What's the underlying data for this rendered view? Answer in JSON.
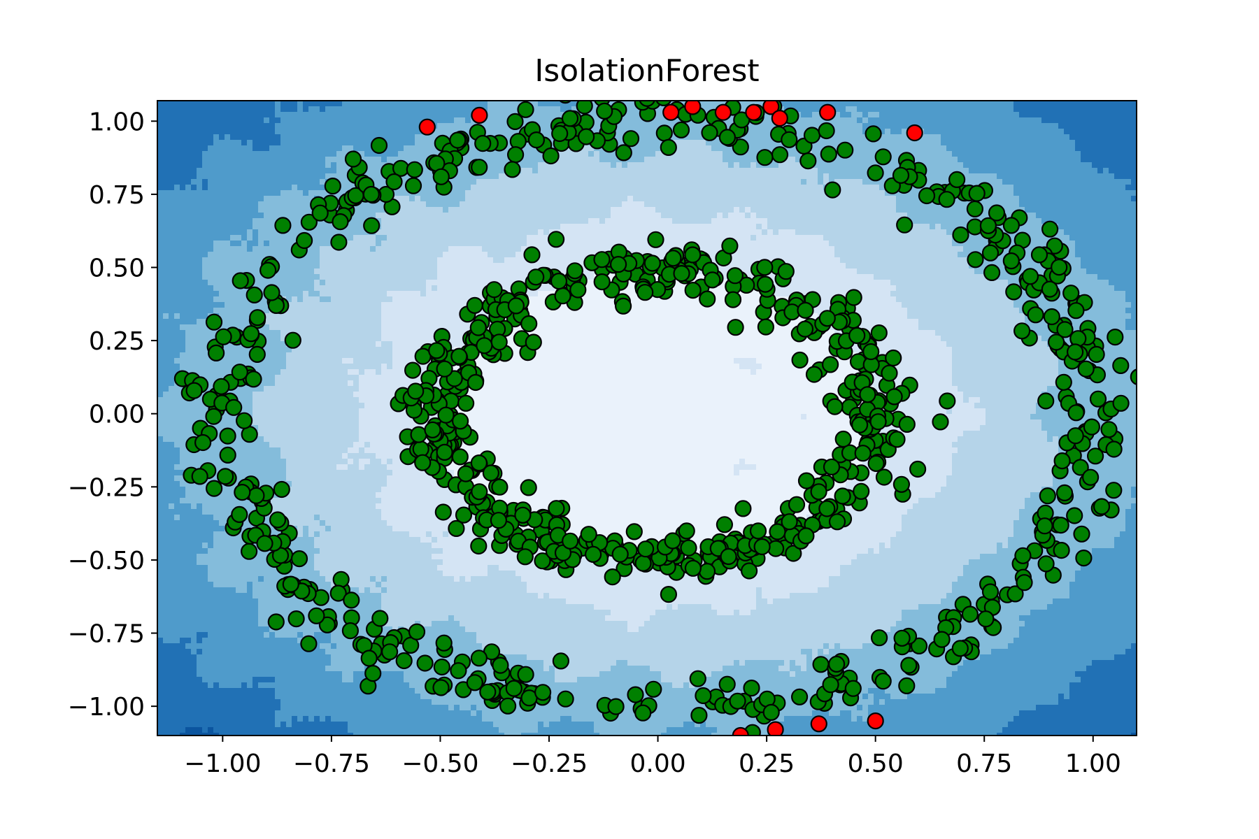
{
  "chart_data": {
    "type": "scatter",
    "title": "IsolationForest",
    "xlabel": "",
    "ylabel": "",
    "xlim": [
      -1.15,
      1.1
    ],
    "ylim": [
      -1.1,
      1.07
    ],
    "x_ticks": [
      -1.0,
      -0.75,
      -0.5,
      -0.25,
      0.0,
      0.25,
      0.5,
      0.75,
      1.0
    ],
    "x_tick_labels": [
      "−1.00",
      "−0.75",
      "−0.50",
      "−0.25",
      "0.00",
      "0.25",
      "0.50",
      "0.75",
      "1.00"
    ],
    "y_ticks": [
      1.0,
      0.75,
      0.5,
      0.25,
      0.0,
      -0.25,
      -0.5,
      -0.75,
      -1.0
    ],
    "y_tick_labels": [
      "1.00",
      "0.75",
      "0.50",
      "0.25",
      "0.00",
      "−0.25",
      "−0.50",
      "−0.75",
      "−1.00"
    ],
    "grid": false,
    "background": {
      "type": "filled-contour",
      "colormap": "Blues",
      "levels": [
        "#eaf2fb",
        "#d4e4f4",
        "#b5d4e9",
        "#84bcdb",
        "#4f9bcb",
        "#2171b5",
        "#0b559f",
        "#083c7d"
      ]
    },
    "marker_edge_color": "#000000",
    "series": [
      {
        "role": "inliers",
        "color": "#008000",
        "rings": [
          {
            "cx": 0.0,
            "cy": 0.0,
            "rx": 1.0,
            "ry": 1.0,
            "noise": 0.05,
            "count": 520
          },
          {
            "cx": 0.0,
            "cy": 0.0,
            "rx": 0.5,
            "ry": 0.5,
            "noise": 0.05,
            "count": 520
          }
        ]
      },
      {
        "role": "outliers",
        "color": "#ff0000",
        "x": [
          -0.53,
          -0.41,
          0.03,
          0.08,
          0.15,
          0.22,
          0.26,
          0.28,
          0.39,
          0.59,
          0.19,
          0.27,
          0.37,
          0.5
        ],
        "y": [
          0.98,
          1.02,
          1.03,
          1.05,
          1.03,
          1.03,
          1.05,
          1.01,
          1.03,
          0.96,
          -1.1,
          -1.08,
          -1.06,
          -1.05
        ]
      }
    ]
  }
}
